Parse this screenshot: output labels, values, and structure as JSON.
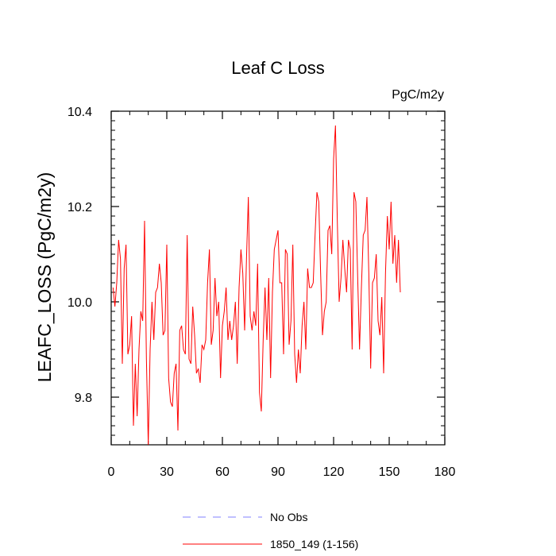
{
  "chart_data": {
    "type": "line",
    "title": "Leaf C Loss",
    "units_label": "PgC/m2y",
    "xlabel": "",
    "ylabel": "LEAFC_LOSS  (PgC/m2y)",
    "xlim": [
      0,
      180
    ],
    "ylim": [
      9.7,
      10.4
    ],
    "xticks": [
      0,
      30,
      60,
      90,
      120,
      150,
      180
    ],
    "xtick_labels": [
      "0",
      "30",
      "60",
      "90",
      "120",
      "150",
      "180"
    ],
    "yticks": [
      9.8,
      10.0,
      10.2,
      10.4
    ],
    "ytick_labels": [
      "9.8",
      "10.0",
      "10.2",
      "10.4"
    ],
    "grid": false,
    "legend": [
      {
        "label": "No Obs",
        "style": "dashed",
        "color": "#8080ff"
      },
      {
        "label": "1850_149 (1-156)",
        "style": "solid",
        "color": "#ff0000"
      }
    ],
    "series": [
      {
        "name": "1850_149 (1-156)",
        "color": "#ff0000",
        "x": [
          1,
          2,
          3,
          4,
          5,
          6,
          7,
          8,
          9,
          10,
          11,
          12,
          13,
          14,
          15,
          16,
          17,
          18,
          19,
          20,
          21,
          22,
          23,
          24,
          25,
          26,
          27,
          28,
          29,
          30,
          31,
          32,
          33,
          34,
          35,
          36,
          37,
          38,
          39,
          40,
          41,
          42,
          43,
          44,
          45,
          46,
          47,
          48,
          49,
          50,
          51,
          52,
          53,
          54,
          55,
          56,
          57,
          58,
          59,
          60,
          61,
          62,
          63,
          64,
          65,
          66,
          67,
          68,
          69,
          70,
          71,
          72,
          73,
          74,
          75,
          76,
          77,
          78,
          79,
          80,
          81,
          82,
          83,
          84,
          85,
          86,
          87,
          88,
          89,
          90,
          91,
          92,
          93,
          94,
          95,
          96,
          97,
          98,
          99,
          100,
          101,
          102,
          103,
          104,
          105,
          106,
          107,
          108,
          109,
          110,
          111,
          112,
          113,
          114,
          115,
          116,
          117,
          118,
          119,
          120,
          121,
          122,
          123,
          124,
          125,
          126,
          127,
          128,
          129,
          130,
          131,
          132,
          133,
          134,
          135,
          136,
          137,
          138,
          139,
          140,
          141,
          142,
          143,
          144,
          145,
          146,
          147,
          148,
          149,
          150,
          151,
          152,
          153,
          154,
          155,
          156
        ],
        "values": [
          10.03,
          9.99,
          10.04,
          10.13,
          10.09,
          9.87,
          10.07,
          10.12,
          9.89,
          9.91,
          9.97,
          9.74,
          9.87,
          9.76,
          9.9,
          9.98,
          9.96,
          10.17,
          9.88,
          9.7,
          9.9,
          10.0,
          9.92,
          10.02,
          10.03,
          10.08,
          10.04,
          9.93,
          9.94,
          10.12,
          9.84,
          9.79,
          9.78,
          9.85,
          9.87,
          9.73,
          9.94,
          9.95,
          9.9,
          9.89,
          10.14,
          9.88,
          9.87,
          9.99,
          9.93,
          9.85,
          9.86,
          9.83,
          9.91,
          9.9,
          9.92,
          10.04,
          10.11,
          9.91,
          9.94,
          10.05,
          9.97,
          10.0,
          9.84,
          9.95,
          9.98,
          10.03,
          9.92,
          9.96,
          9.92,
          9.95,
          10.0,
          9.87,
          10.03,
          10.11,
          10.06,
          9.94,
          10.09,
          10.22,
          9.97,
          9.94,
          9.98,
          9.95,
          10.08,
          9.81,
          9.77,
          9.92,
          10.03,
          9.92,
          10.05,
          9.84,
          10.02,
          10.11,
          10.13,
          10.15,
          10.04,
          10.04,
          9.89,
          10.11,
          10.1,
          9.91,
          9.96,
          10.12,
          9.89,
          9.83,
          9.9,
          9.85,
          9.95,
          10.0,
          9.9,
          10.07,
          10.03,
          10.03,
          10.04,
          10.14,
          10.23,
          10.21,
          10.06,
          9.93,
          9.98,
          10.0,
          10.15,
          10.16,
          10.1,
          10.3,
          10.37,
          10.17,
          10.0,
          10.05,
          10.13,
          10.07,
          10.02,
          10.13,
          10.11,
          9.9,
          10.23,
          10.21,
          10.05,
          9.9,
          10.03,
          10.14,
          10.15,
          10.22,
          10.06,
          9.86,
          10.04,
          10.05,
          10.1,
          9.96,
          9.93,
          10.01,
          9.85,
          10.06,
          10.18,
          10.11,
          10.21,
          10.08,
          10.14,
          10.04,
          10.13,
          10.02
        ]
      }
    ]
  }
}
